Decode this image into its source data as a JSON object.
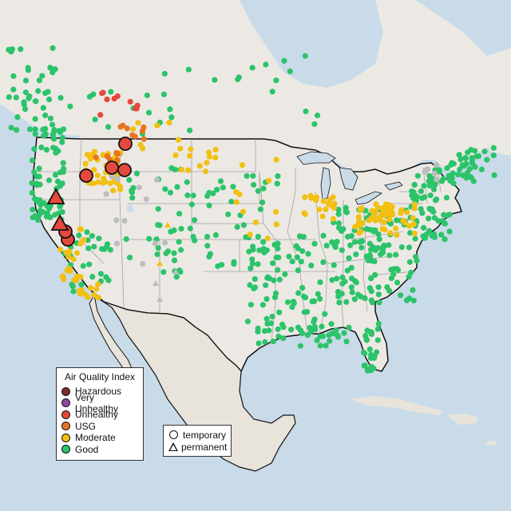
{
  "colors": {
    "water": "#c9dbe9",
    "land": "#ece9e4",
    "land_mexico": "#e8e4dc",
    "border": "#111111",
    "state": "#a3a3a3",
    "hazardous": "#7e2b2b",
    "very_unhealthy": "#8e4aa0",
    "unhealthy": "#e5483c",
    "usg": "#e8741f",
    "moderate": "#f2c012",
    "good": "#2cc36b",
    "nodata": "#bdbdbd"
  },
  "aqi_legend": {
    "title": "Air Quality Index",
    "items": [
      {
        "label": "Hazardous",
        "color": "#7e2b2b"
      },
      {
        "label": "Very Unhealthy",
        "color": "#8e4aa0"
      },
      {
        "label": "Unhealthy",
        "color": "#e5483c"
      },
      {
        "label": "USG",
        "color": "#e8741f"
      },
      {
        "label": "Moderate",
        "color": "#f2c012"
      },
      {
        "label": "Good",
        "color": "#2cc36b"
      }
    ]
  },
  "type_legend": {
    "items": [
      {
        "label": "temporary",
        "shape": "circle"
      },
      {
        "label": "permanent",
        "shape": "triangle"
      }
    ]
  }
}
